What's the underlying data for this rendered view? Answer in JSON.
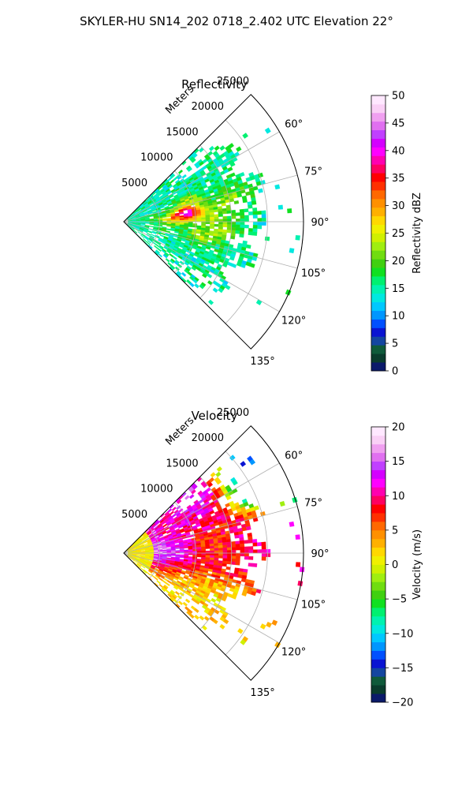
{
  "suptitle": "SKYLER-HU  SN14_202  0718_2.402 UTC Elevation 22°",
  "chart_data": [
    {
      "type": "polar-sector-image",
      "title": "Reflectivity",
      "radial_axis_label": "Meters",
      "radial_ticks": [
        "5000",
        "10000",
        "15000",
        "20000",
        "25000"
      ],
      "radial_tick_values": [
        5000,
        10000,
        15000,
        20000,
        25000
      ],
      "radial_max": 25000,
      "angular_range_deg": [
        45,
        135
      ],
      "angular_ticks": [
        "60°",
        "75°",
        "90°",
        "105°",
        "120°",
        "135°"
      ],
      "angular_tick_values": [
        60,
        75,
        90,
        105,
        120,
        135
      ],
      "colorbar": {
        "label": "Reflectivity dBZ",
        "range": [
          0,
          50
        ],
        "ticks": [
          "0",
          "5",
          "10",
          "15",
          "20",
          "25",
          "30",
          "35",
          "40",
          "45",
          "50"
        ],
        "tick_values": [
          0,
          5,
          10,
          15,
          20,
          25,
          30,
          35,
          40,
          45,
          50
        ],
        "colors": [
          "#0b1a6a",
          "#0a3c2c",
          "#0f5a3a",
          "#1446a0",
          "#0a14d2",
          "#0050ff",
          "#0096ff",
          "#00c8ff",
          "#00e8e0",
          "#00f2b0",
          "#00f070",
          "#10e020",
          "#40d010",
          "#70dd10",
          "#a0ee10",
          "#d0f000",
          "#f0f000",
          "#ffd800",
          "#ffb000",
          "#ff9000",
          "#ff6800",
          "#ff3000",
          "#ff0000",
          "#ff0060",
          "#ff00b0",
          "#ff00ff",
          "#d400ff",
          "#c040ff",
          "#e070f0",
          "#f0a0f0",
          "#fad0f6",
          "#ffe8ff"
        ]
      },
      "echo_dbz": {
        "background": 15,
        "features": [
          {
            "range": 3300,
            "azimuth": 80,
            "dbz": 17
          },
          {
            "range": 5500,
            "azimuth": 100,
            "dbz": 18
          },
          {
            "range": 7000,
            "azimuth": 88,
            "dbz": 26
          },
          {
            "range": 9000,
            "azimuth": 82,
            "dbz": 38
          },
          {
            "range": 9500,
            "azimuth": 72,
            "dbz": 22
          },
          {
            "range": 11000,
            "azimuth": 100,
            "dbz": 22
          },
          {
            "range": 12000,
            "azimuth": 88,
            "dbz": 21
          },
          {
            "range": 15000,
            "azimuth": 80,
            "dbz": 22
          },
          {
            "range": 14000,
            "azimuth": 95,
            "dbz": 20
          },
          {
            "range": 16500,
            "azimuth": 72,
            "dbz": 18
          },
          {
            "range": 12000,
            "azimuth": 108,
            "dbz": 16
          }
        ]
      }
    },
    {
      "type": "polar-sector-image",
      "title": "Velocity",
      "radial_axis_label": "Meters",
      "radial_ticks": [
        "5000",
        "10000",
        "15000",
        "20000",
        "25000"
      ],
      "radial_tick_values": [
        5000,
        10000,
        15000,
        20000,
        25000
      ],
      "radial_max": 25000,
      "angular_range_deg": [
        45,
        135
      ],
      "angular_ticks": [
        "60°",
        "75°",
        "90°",
        "105°",
        "120°",
        "135°"
      ],
      "angular_tick_values": [
        60,
        75,
        90,
        105,
        120,
        135
      ],
      "colorbar": {
        "label": "Velocity (m/s)",
        "range": [
          -20,
          20
        ],
        "ticks": [
          "−20",
          "−15",
          "−10",
          "−5",
          "0",
          "5",
          "10",
          "15",
          "20"
        ],
        "tick_values": [
          -20,
          -15,
          -10,
          -5,
          0,
          5,
          10,
          15,
          20
        ],
        "colors": [
          "#0b1a6a",
          "#0a3c2c",
          "#0f5a3a",
          "#1446a0",
          "#0a14d2",
          "#0050ff",
          "#0096ff",
          "#00c8ff",
          "#00e8e0",
          "#00f2b0",
          "#00f070",
          "#10e020",
          "#40d010",
          "#70dd10",
          "#a0ee10",
          "#d0f000",
          "#f0f000",
          "#ffd800",
          "#ffb000",
          "#ff9000",
          "#ff6800",
          "#ff3000",
          "#ff0000",
          "#ff0060",
          "#ff00b0",
          "#ff00ff",
          "#d400ff",
          "#c040ff",
          "#e070f0",
          "#f0a0f0",
          "#fad0f6",
          "#ffe8ff"
        ]
      },
      "velocity_ms": {
        "near_range_max": 4500,
        "near_range_value": 1,
        "features": [
          {
            "range": 6500,
            "azimuth": 84,
            "ms": 16
          },
          {
            "range": 7000,
            "azimuth": 100,
            "ms": 13
          },
          {
            "range": 9000,
            "azimuth": 80,
            "ms": 9
          },
          {
            "range": 11000,
            "azimuth": 68,
            "ms": 11
          },
          {
            "range": 11000,
            "azimuth": 95,
            "ms": 8
          },
          {
            "range": 13000,
            "azimuth": 80,
            "ms": 5
          },
          {
            "range": 14000,
            "azimuth": 90,
            "ms": 8
          },
          {
            "range": 14500,
            "azimuth": 72,
            "ms": 10
          },
          {
            "range": 15000,
            "azimuth": 58,
            "ms": 14
          },
          {
            "range": 17000,
            "azimuth": 82,
            "ms": 10
          },
          {
            "range": 9000,
            "azimuth": 108,
            "ms": 4
          },
          {
            "range": 12000,
            "azimuth": 115,
            "ms": 2
          },
          {
            "range": 18000,
            "azimuth": 60,
            "ms": -14
          }
        ]
      }
    }
  ]
}
